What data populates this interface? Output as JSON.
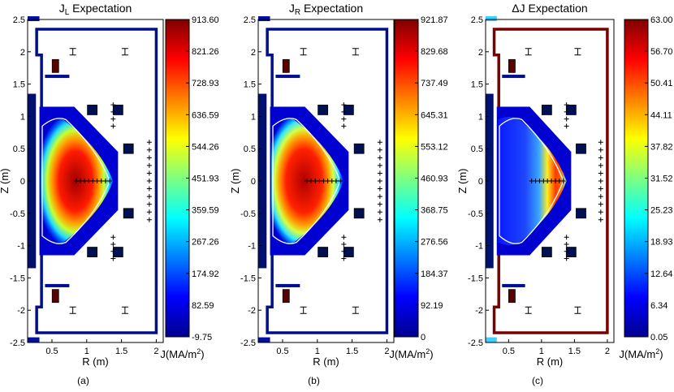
{
  "chart_data": [
    {
      "type": "heatmap",
      "panel_label": "(a)",
      "title_main": "J",
      "title_sub": "L",
      "title_rest": " Expectation",
      "xlabel": "R (m)",
      "ylabel": "Z (m)",
      "xlim": [
        0.15,
        2.1
      ],
      "ylim": [
        -2.5,
        2.5
      ],
      "xticks": [
        "0.5",
        "1",
        "1.5",
        "2"
      ],
      "yticks": [
        "2.5",
        "2",
        "1.5",
        "1",
        "0.5",
        "0",
        "-0.5",
        "-1",
        "-1.5",
        "-2",
        "-2.5"
      ],
      "colorbar": {
        "label": "J(MA/m",
        "label_sup": "2",
        "label_end": ")",
        "min": -9.75,
        "max": 913.6,
        "ticks": [
          "913.60",
          "821.26",
          "728.93",
          "636.59",
          "544.26",
          "451.93",
          "359.59",
          "267.26",
          "174.92",
          "82.59",
          "-9.75"
        ]
      }
    },
    {
      "type": "heatmap",
      "panel_label": "(b)",
      "title_main": "J",
      "title_sub": "R",
      "title_rest": " Expectation",
      "xlabel": "R (m)",
      "ylabel": "Z (m)",
      "xlim": [
        0.15,
        2.1
      ],
      "ylim": [
        -2.5,
        2.5
      ],
      "xticks": [
        "0.5",
        "1",
        "1.5",
        "2"
      ],
      "yticks": [
        "2.5",
        "2",
        "1.5",
        "1",
        "0.5",
        "0",
        "-0.5",
        "-1",
        "-1.5",
        "-2",
        "-2.5"
      ],
      "colorbar": {
        "label": "J(MA/m",
        "label_sup": "2",
        "label_end": ")",
        "min": 0,
        "max": 921.87,
        "ticks": [
          "921.87",
          "829.68",
          "737.49",
          "645.31",
          "553.12",
          "460.93",
          "368.75",
          "276.56",
          "184.37",
          "92.19",
          "0"
        ]
      }
    },
    {
      "type": "heatmap",
      "panel_label": "(c)",
      "title_main": "ΔJ",
      "title_sub": "",
      "title_rest": " Expectation",
      "xlabel": "R (m)",
      "ylabel": "Z (m)",
      "xlim": [
        0.15,
        2.1
      ],
      "ylim": [
        -2.5,
        2.5
      ],
      "xticks": [
        "0.5",
        "1",
        "1.5",
        "2"
      ],
      "yticks": [
        "2.5",
        "2",
        "1.5",
        "1",
        "0.5",
        "0",
        "-0.5",
        "-1",
        "-1.5",
        "-2",
        "-2.5"
      ],
      "colorbar": {
        "label": "J(MA/m",
        "label_sup": "2",
        "label_end": ")",
        "min": 0.05,
        "max": 63.0,
        "ticks": [
          "63.00",
          "56.70",
          "50.41",
          "44.11",
          "37.82",
          "31.52",
          "25.23",
          "18.93",
          "12.64",
          "6.34",
          "0.05"
        ]
      }
    }
  ]
}
